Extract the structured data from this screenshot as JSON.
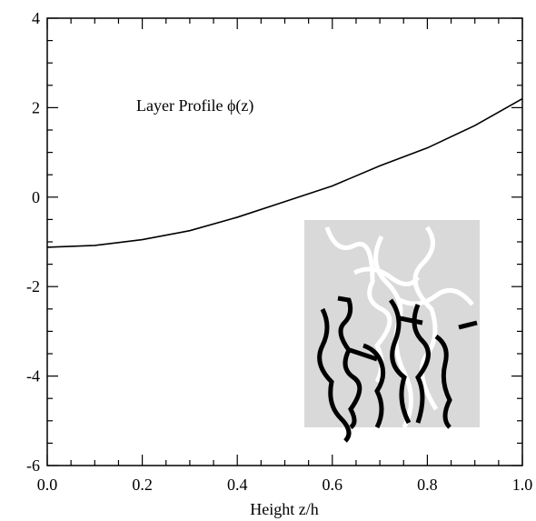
{
  "chart_data": {
    "type": "line",
    "annotation": "Layer Profile ϕ(z)",
    "xlabel": "Height z/h",
    "x": [
      0.0,
      0.1,
      0.2,
      0.3,
      0.4,
      0.5,
      0.6,
      0.7,
      0.8,
      0.9,
      1.0
    ],
    "series": [
      {
        "color": "#000000",
        "values": [
          -1.12,
          -1.08,
          -0.95,
          -0.75,
          -0.45,
          -0.1,
          0.25,
          0.7,
          1.1,
          1.6,
          2.2
        ]
      }
    ],
    "xlim": [
      0,
      1
    ],
    "ylim": [
      -6,
      4
    ],
    "xticks": [
      {
        "value": 0,
        "label": "0.0"
      },
      {
        "value": 0.2,
        "label": "0.2"
      },
      {
        "value": 0.4,
        "label": "0.4"
      },
      {
        "value": 0.6,
        "label": "0.6"
      },
      {
        "value": 0.8,
        "label": "0.8"
      },
      {
        "value": 1,
        "label": "1.0"
      }
    ],
    "yticks": [
      -6,
      -4,
      -2,
      0,
      2,
      4
    ]
  }
}
